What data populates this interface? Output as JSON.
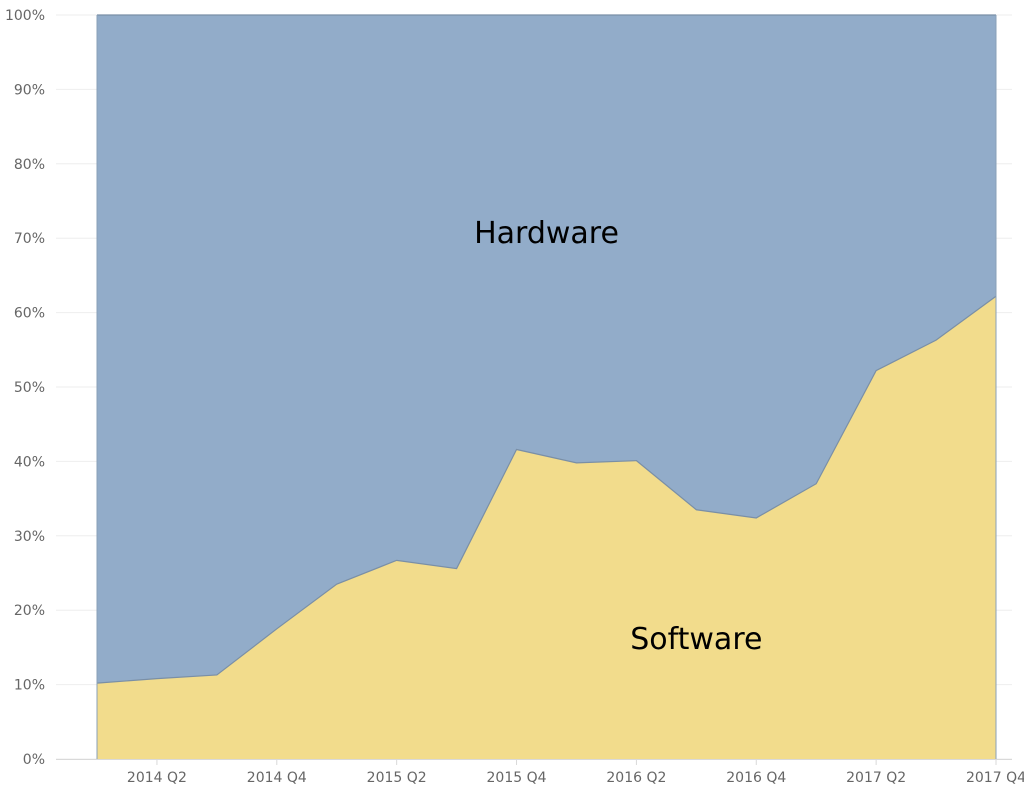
{
  "chart_data": {
    "type": "area",
    "stacked": true,
    "normalized_percent": true,
    "x": [
      "2014 Q1",
      "2014 Q2",
      "2014 Q3",
      "2014 Q4",
      "2015 Q1",
      "2015 Q2",
      "2015 Q3",
      "2015 Q4",
      "2016 Q1",
      "2016 Q2",
      "2016 Q3",
      "2016 Q4",
      "2017 Q1",
      "2017 Q2",
      "2017 Q3",
      "2017 Q4"
    ],
    "x_tick_labels": [
      "2014 Q2",
      "2014 Q4",
      "2015 Q2",
      "2015 Q4",
      "2016 Q2",
      "2016 Q4",
      "2017 Q2",
      "2017 Q4"
    ],
    "y_tick_labels": [
      "0%",
      "10%",
      "20%",
      "30%",
      "40%",
      "50%",
      "60%",
      "70%",
      "80%",
      "90%",
      "100%"
    ],
    "ylim": [
      0,
      100
    ],
    "grid": true,
    "legend": "none",
    "series": [
      {
        "name": "Software",
        "color": "#f2dc8c",
        "values": [
          10.2,
          10.8,
          11.3,
          17.5,
          23.5,
          26.7,
          25.6,
          41.6,
          39.8,
          40.1,
          33.5,
          32.4,
          37.0,
          52.2,
          56.3,
          62.2
        ]
      },
      {
        "name": "Hardware",
        "color": "#92acc9",
        "values": [
          89.8,
          89.2,
          88.7,
          82.5,
          76.5,
          73.3,
          74.4,
          58.4,
          60.2,
          59.9,
          66.5,
          67.6,
          63.0,
          47.8,
          43.7,
          37.8
        ]
      }
    ],
    "annotations": [
      {
        "text": "Hardware",
        "series": "Hardware"
      },
      {
        "text": "Software",
        "series": "Software"
      }
    ]
  }
}
